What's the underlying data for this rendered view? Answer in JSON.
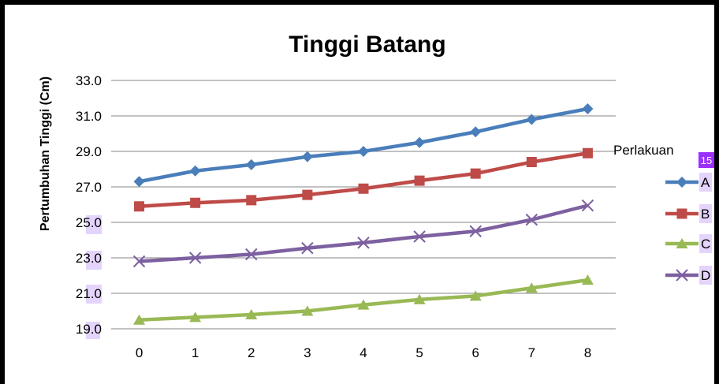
{
  "chart_data": {
    "type": "line",
    "title": "Tinggi Batang",
    "xlabel": "",
    "ylabel": "Pertumbuhan Tinggi (Cm)",
    "x": [
      0,
      1,
      2,
      3,
      4,
      5,
      6,
      7,
      8
    ],
    "ylim": [
      19.0,
      33.0
    ],
    "yticks": [
      "33.0",
      "31.0",
      "29.0",
      "27.0",
      "25.0",
      "23.0",
      "21.0",
      "19.0"
    ],
    "grid": "horizontal",
    "legend_title": "Perlakuan",
    "legend_position": "right",
    "series": [
      {
        "name": "A",
        "color": "#4a7ebb",
        "marker": "diamond",
        "values": [
          27.3,
          27.9,
          28.25,
          28.7,
          29.0,
          29.5,
          30.1,
          30.8,
          31.4
        ]
      },
      {
        "name": "B",
        "color": "#be4b48",
        "marker": "square",
        "values": [
          25.9,
          26.1,
          26.25,
          26.55,
          26.9,
          27.35,
          27.75,
          28.4,
          28.9
        ]
      },
      {
        "name": "C",
        "color": "#98b954",
        "marker": "triangle",
        "values": [
          19.5,
          19.65,
          19.8,
          20.0,
          20.35,
          20.65,
          20.85,
          21.3,
          21.75
        ]
      },
      {
        "name": "D",
        "color": "#7d60a0",
        "marker": "x",
        "values": [
          22.8,
          23.0,
          23.2,
          23.55,
          23.85,
          24.2,
          24.5,
          25.15,
          25.95
        ]
      }
    ]
  },
  "annotation": {
    "badge": "15",
    "badge_color": "#9b30ff",
    "highlight_color": "#e4d4fb"
  }
}
